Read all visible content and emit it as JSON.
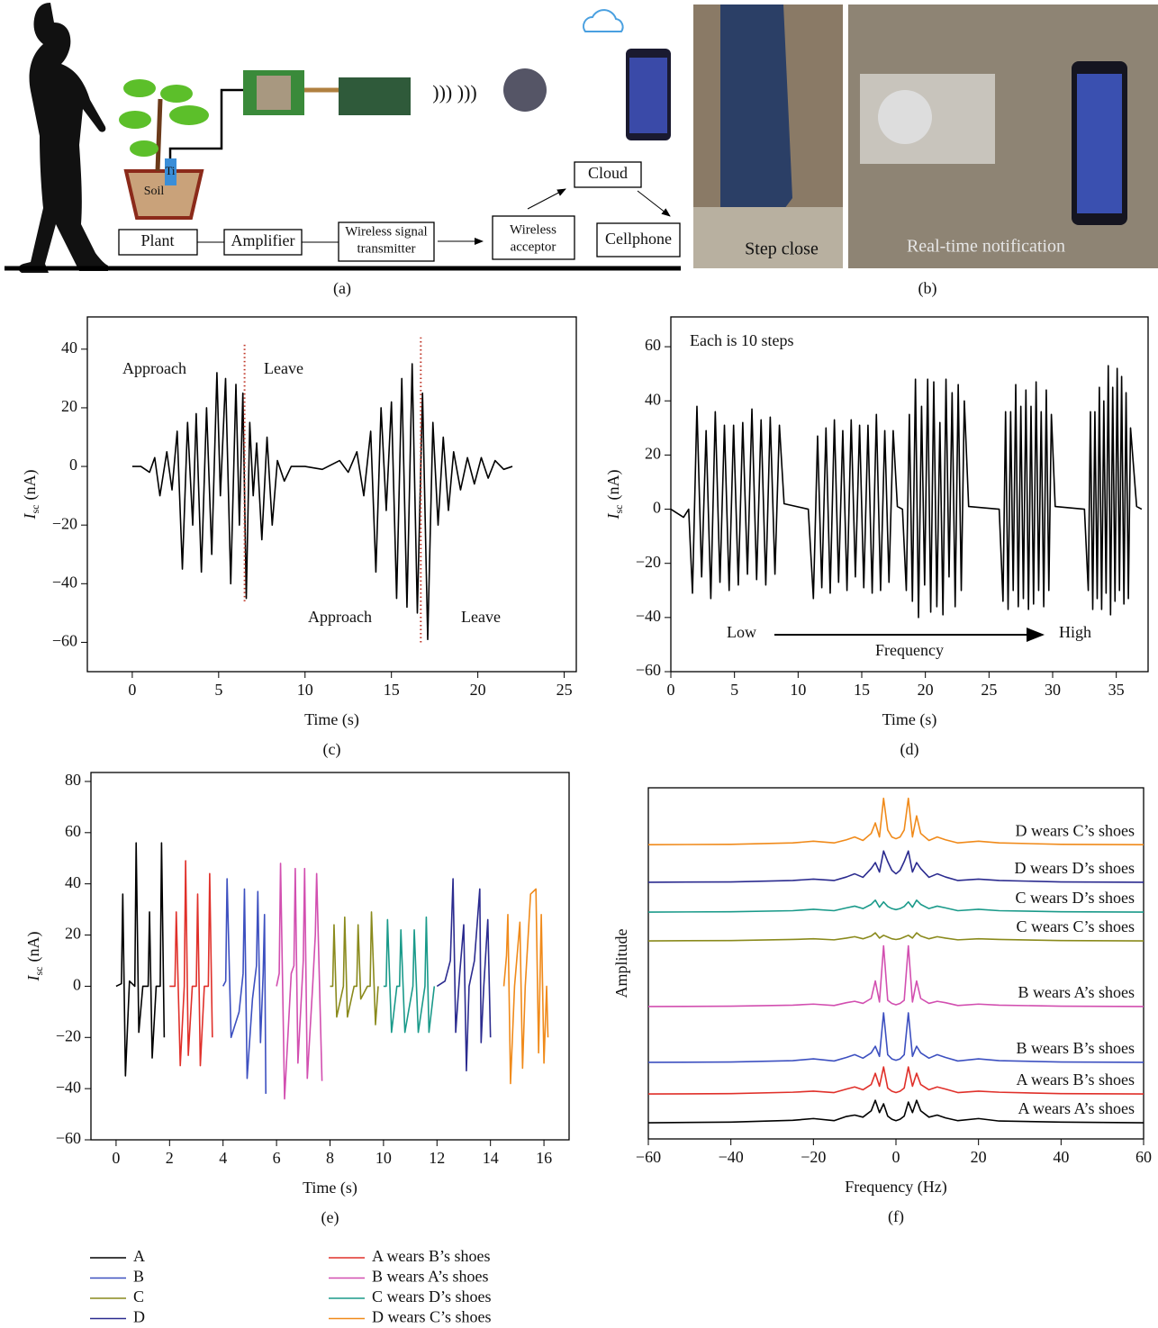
{
  "panel_a": {
    "soil": "Soil",
    "electrode": "Ti",
    "boxes": {
      "plant": "Plant",
      "amplifier": "Amplifier",
      "transmitter": [
        "Wireless signal",
        "transmitter"
      ],
      "acceptor": [
        "Wireless",
        "acceptor"
      ],
      "cloud": "Cloud",
      "cellphone": "Cellphone"
    },
    "caption": "(a)"
  },
  "panel_b": {
    "left_label": "Step close",
    "right_label": "Real-time notification",
    "caption": "(b)"
  },
  "chart_data": [
    {
      "type": "line",
      "caption": "(c)",
      "xlabel": "Time (s)",
      "ylabel": {
        "symbol": "I",
        "subscript": "sc",
        "unit": "(nA)"
      },
      "annotations": [
        "Approach",
        "Leave",
        "Approach",
        "Leave"
      ],
      "xlim": [
        -2.6,
        25.7
      ],
      "ylim": [
        -70,
        51
      ],
      "xticks": [
        0,
        5,
        10,
        15,
        20,
        25
      ],
      "yticks": [
        {
          "value": -60,
          "label": "−60"
        },
        {
          "value": -40,
          "label": "−40"
        },
        {
          "value": -20,
          "label": "−20"
        },
        0,
        20,
        40
      ],
      "color": "#000000",
      "x": [
        0,
        0.5,
        1,
        1.3,
        1.6,
        2,
        2.3,
        2.6,
        2.9,
        3.2,
        3.5,
        3.7,
        4,
        4.3,
        4.6,
        4.9,
        5.1,
        5.4,
        5.7,
        6,
        6.2,
        6.4,
        6.6,
        6.8,
        7,
        7.2,
        7.5,
        7.8,
        8.1,
        8.4,
        8.8,
        9.2,
        10,
        11,
        12,
        12.5,
        13,
        13.4,
        13.8,
        14.1,
        14.4,
        14.7,
        15,
        15.3,
        15.6,
        15.9,
        16.2,
        16.5,
        16.8,
        17.1,
        17.4,
        17.7,
        18,
        18.3,
        18.6,
        19,
        19.4,
        19.8,
        20.2,
        20.6,
        21,
        21.5,
        22
      ],
      "values": [
        0,
        0,
        -2,
        3,
        -10,
        5,
        -8,
        12,
        -35,
        15,
        -20,
        18,
        -36,
        20,
        -30,
        32,
        -10,
        30,
        -40,
        28,
        -20,
        25,
        -45,
        15,
        -10,
        8,
        -25,
        10,
        -20,
        2,
        -5,
        0,
        0,
        -1,
        2,
        -2,
        5,
        -10,
        12,
        -36,
        20,
        -15,
        22,
        -45,
        30,
        -48,
        35,
        -50,
        25,
        -59,
        15,
        -20,
        10,
        -15,
        5,
        -8,
        3,
        -6,
        3,
        -4,
        2,
        -1,
        0
      ],
      "reference_lines": {
        "color": "#c0392b",
        "lines": [
          {
            "x": 6.5,
            "y": [
              -46,
              42
            ]
          },
          {
            "x": 16.7,
            "y": [
              -60,
              44
            ]
          }
        ]
      }
    },
    {
      "type": "line",
      "caption": "(d)",
      "xlabel": "Time (s)",
      "ylabel": {
        "symbol": "I",
        "subscript": "sc",
        "unit": "(nA)"
      },
      "annotations": {
        "note": "Each is 10 steps",
        "low": "Low",
        "axis": "Frequency",
        "high": "High"
      },
      "xlim": [
        0,
        37.5
      ],
      "ylim": [
        -60,
        71
      ],
      "xticks": [
        0,
        5,
        10,
        15,
        20,
        25,
        30,
        35
      ],
      "yticks": [
        {
          "value": -60,
          "label": "−60"
        },
        {
          "value": -40,
          "label": "−40"
        },
        {
          "value": -20,
          "label": "−20"
        },
        0,
        20,
        40,
        60
      ],
      "color": "#000000",
      "x": [
        0,
        1,
        1.4,
        1.7,
        2.05,
        2.42,
        2.77,
        3.14,
        3.49,
        3.86,
        4.21,
        4.58,
        4.93,
        5.3,
        5.65,
        6.02,
        6.37,
        6.74,
        7.09,
        7.46,
        7.81,
        8.18,
        8.53,
        8.9,
        10.8,
        11.2,
        11.53,
        11.86,
        12.19,
        12.52,
        12.85,
        13.18,
        13.51,
        13.84,
        14.17,
        14.5,
        14.83,
        15.16,
        15.49,
        15.82,
        16.15,
        16.48,
        16.81,
        17.14,
        17.47,
        17.8,
        18.2,
        18.5,
        18.74,
        18.98,
        19.22,
        19.46,
        19.7,
        19.94,
        20.18,
        20.42,
        20.66,
        20.9,
        21.14,
        21.38,
        21.62,
        21.86,
        22.1,
        22.34,
        22.58,
        22.82,
        23.06,
        23.4,
        25.8,
        26.1,
        26.3,
        26.5,
        26.7,
        26.9,
        27.1,
        27.3,
        27.5,
        27.7,
        27.9,
        28.1,
        28.3,
        28.5,
        28.7,
        28.9,
        29.1,
        29.3,
        29.5,
        29.7,
        29.9,
        30.2,
        32.5,
        32.8,
        32.97,
        33.15,
        33.32,
        33.5,
        33.67,
        33.85,
        34.02,
        34.2,
        34.37,
        34.55,
        34.72,
        34.9,
        35.07,
        35.25,
        35.42,
        35.6,
        35.77,
        35.95,
        36.12,
        36.6,
        37
      ],
      "values": [
        0,
        -3,
        0,
        -31,
        38,
        -25,
        29,
        -33,
        36,
        -27,
        31,
        -30,
        31,
        -28,
        32,
        -24,
        37,
        -26,
        33,
        -28,
        34,
        -24,
        31,
        2,
        0,
        -33,
        27,
        -29,
        30,
        -31,
        33,
        -27,
        29,
        -30,
        33,
        -25,
        31,
        -29,
        31,
        -31,
        35,
        -30,
        29,
        -27,
        29,
        1,
        0,
        -30,
        35,
        -34,
        48,
        -40,
        38,
        -28,
        48,
        -38,
        47,
        -36,
        32,
        -39,
        48,
        -25,
        43,
        -36,
        46,
        -30,
        40,
        1,
        0,
        -34,
        36,
        -37,
        36,
        -30,
        46,
        -36,
        38,
        -33,
        44,
        -37,
        38,
        -35,
        47,
        -30,
        36,
        -36,
        44,
        -30,
        35,
        1,
        0,
        -30,
        36,
        -37,
        36,
        -33,
        45,
        -37,
        40,
        -31,
        53,
        -39,
        45,
        -34,
        52,
        -30,
        49,
        -35,
        43,
        -33,
        30,
        1,
        0
      ]
    },
    {
      "type": "line",
      "caption": "(e)",
      "xlabel": "Time (s)",
      "ylabel": {
        "symbol": "I",
        "subscript": "sc",
        "unit": "(nA)"
      },
      "xlim": [
        -0.94,
        16.94
      ],
      "ylim": [
        -60,
        83.5
      ],
      "xticks": [
        0,
        2,
        4,
        6,
        8,
        10,
        12,
        14,
        16
      ],
      "yticks": [
        {
          "value": -60,
          "label": "−60"
        },
        {
          "value": -40,
          "label": "−40"
        },
        {
          "value": -20,
          "label": "−20"
        },
        0,
        20,
        40,
        60,
        80
      ],
      "legend": "below",
      "legend_columns": 2,
      "series": [
        {
          "name": "A",
          "color": "#000000",
          "x": [
            0,
            0.2,
            0.25,
            0.35,
            0.5,
            0.7,
            0.75,
            0.85,
            1.0,
            1.2,
            1.25,
            1.35,
            1.5,
            1.65,
            1.7,
            1.8
          ],
          "values": [
            0,
            1,
            36,
            -35,
            2,
            0,
            56,
            -18,
            0,
            0,
            29,
            -28,
            0,
            0,
            56,
            -20
          ]
        },
        {
          "name": "B",
          "color": "#3d50c0",
          "x": [
            4.0,
            4.1,
            4.15,
            4.3,
            4.6,
            4.75,
            4.8,
            4.9,
            5.1,
            5.25,
            5.3,
            5.4,
            5.5,
            5.55,
            5.6
          ],
          "values": [
            0,
            2,
            42,
            -20,
            -10,
            5,
            38,
            -36,
            -5,
            8,
            37,
            -22,
            5,
            28,
            -42
          ]
        },
        {
          "name": "C",
          "color": "#8a8a1c",
          "x": [
            8.0,
            8.1,
            8.15,
            8.25,
            8.5,
            8.55,
            8.65,
            8.9,
            9.0,
            9.05,
            9.15,
            9.4,
            9.5,
            9.55,
            9.7,
            9.8
          ],
          "values": [
            0,
            0,
            24,
            -12,
            0,
            27,
            -12,
            0,
            0,
            24,
            -5,
            0,
            0,
            29,
            -15,
            0
          ]
        },
        {
          "name": "D",
          "color": "#2b2b8f",
          "x": [
            12.0,
            12.3,
            12.5,
            12.6,
            12.7,
            12.85,
            13.0,
            13.1,
            13.2,
            13.4,
            13.6,
            13.65,
            13.75,
            13.9,
            14.0
          ],
          "values": [
            0,
            2,
            10,
            42,
            -18,
            5,
            24,
            -33,
            0,
            10,
            38,
            -22,
            0,
            26,
            -20
          ]
        },
        {
          "name": "A wears B’s shoes",
          "color": "#e0302a",
          "x": [
            2.0,
            2.2,
            2.25,
            2.4,
            2.55,
            2.6,
            2.7,
            2.85,
            3.0,
            3.05,
            3.15,
            3.3,
            3.45,
            3.5,
            3.6
          ],
          "values": [
            0,
            0,
            29,
            -31,
            0,
            49,
            -27,
            0,
            0,
            36,
            -31,
            0,
            0,
            44,
            -20
          ]
        },
        {
          "name": "B wears A’s shoes",
          "color": "#d24fb0",
          "x": [
            6.0,
            6.1,
            6.15,
            6.3,
            6.55,
            6.65,
            6.7,
            6.8,
            7.0,
            7.05,
            7.15,
            7.35,
            7.45,
            7.5,
            7.7
          ],
          "values": [
            0,
            5,
            48,
            -44,
            5,
            8,
            46,
            -30,
            10,
            46,
            -36,
            0,
            20,
            44,
            -37
          ]
        },
        {
          "name": "C wears D’s shoes",
          "color": "#1a9a8a",
          "x": [
            10.0,
            10.1,
            10.15,
            10.3,
            10.5,
            10.6,
            10.65,
            10.8,
            11.1,
            11.15,
            11.3,
            11.55,
            11.6,
            11.7,
            11.9
          ],
          "values": [
            0,
            0,
            26,
            -18,
            0,
            0,
            22,
            -18,
            0,
            22,
            -18,
            0,
            27,
            -18,
            0
          ]
        },
        {
          "name": "D wears C’s shoes",
          "color": "#f08a1a",
          "x": [
            14.5,
            14.6,
            14.65,
            14.75,
            14.9,
            15.1,
            15.2,
            15.3,
            15.5,
            15.7,
            15.8,
            15.9,
            16.0,
            16.1,
            16.15
          ],
          "values": [
            0,
            12,
            28,
            -38,
            0,
            25,
            -32,
            0,
            36,
            38,
            -26,
            28,
            -30,
            0,
            -20
          ]
        }
      ]
    },
    {
      "type": "line",
      "caption": "(f)",
      "xlabel": "Frequency (Hz)",
      "ylabel_text": "Amplitude",
      "xlim": [
        -60,
        60
      ],
      "ylim": [
        0,
        100
      ],
      "xticks": [
        {
          "value": -60,
          "label": "−60"
        },
        {
          "value": -40,
          "label": "−40"
        },
        {
          "value": -20,
          "label": "−20"
        },
        0,
        20,
        40,
        60
      ],
      "inline_labels": true,
      "x": [
        -60,
        -40,
        -25,
        -20,
        -15,
        -12,
        -10,
        -8,
        -6,
        -5,
        -4,
        -3,
        -2,
        -1,
        0,
        1,
        2,
        3,
        4,
        5,
        6,
        8,
        10,
        12,
        15,
        20,
        25,
        40,
        60
      ],
      "series": [
        {
          "name": "A wears A’s shoes",
          "color": "#000000",
          "values": [
            4.6,
            4.8,
            5.3,
            5.8,
            5.2,
            6.4,
            6.8,
            6.2,
            8.0,
            11.0,
            7.5,
            10.0,
            6.5,
            5.6,
            5.2,
            5.6,
            6.5,
            10.5,
            7.5,
            11.0,
            8.0,
            6.2,
            6.8,
            6.0,
            5.2,
            5.8,
            5.1,
            4.8,
            4.6
          ]
        },
        {
          "name": "A wears B’s shoes",
          "color": "#e0302a",
          "values": [
            12.8,
            12.9,
            13.3,
            13.6,
            13.2,
            14.2,
            14.8,
            14.0,
            15.5,
            18.7,
            15.0,
            20.5,
            14.5,
            13.6,
            13.2,
            13.6,
            14.5,
            20.5,
            15.0,
            18.7,
            15.5,
            14.0,
            14.8,
            14.2,
            13.2,
            13.6,
            13.3,
            12.9,
            12.8
          ]
        },
        {
          "name": "B wears B’s shoes",
          "color": "#3d50c0",
          "values": [
            21.8,
            21.9,
            22.3,
            22.8,
            22.2,
            23.2,
            24.0,
            23.0,
            24.5,
            26.4,
            23.5,
            35.9,
            24.0,
            22.8,
            22.4,
            22.8,
            24.0,
            35.9,
            23.5,
            26.4,
            24.5,
            23.0,
            24.0,
            23.2,
            22.2,
            22.8,
            22.3,
            21.9,
            21.8
          ]
        },
        {
          "name": "B wears A’s shoes",
          "color": "#d24fb0",
          "values": [
            37.7,
            37.8,
            38.1,
            38.4,
            38.0,
            38.8,
            39.2,
            38.6,
            40.0,
            45.0,
            39.0,
            55.0,
            39.5,
            38.6,
            38.2,
            38.6,
            39.5,
            55.0,
            39.0,
            45.0,
            40.0,
            38.6,
            39.2,
            38.8,
            38.0,
            38.4,
            38.1,
            37.8,
            37.7
          ]
        },
        {
          "name": "C wears C’s shoes",
          "color": "#8a8a1c",
          "values": [
            56.4,
            56.5,
            56.8,
            57.0,
            56.7,
            57.2,
            57.6,
            57.0,
            57.8,
            58.7,
            57.2,
            58.0,
            57.5,
            57.0,
            56.8,
            57.0,
            57.5,
            58.0,
            57.2,
            58.7,
            57.8,
            57.0,
            57.6,
            57.2,
            56.7,
            57.0,
            56.8,
            56.5,
            56.4
          ]
        },
        {
          "name": "C wears D’s shoes",
          "color": "#1a9a8a",
          "values": [
            64.6,
            64.7,
            65.0,
            65.4,
            65.0,
            65.8,
            66.3,
            65.6,
            66.8,
            68.0,
            66.0,
            67.5,
            66.2,
            65.6,
            65.3,
            65.6,
            66.2,
            67.5,
            66.0,
            68.0,
            66.8,
            65.6,
            66.3,
            65.8,
            65.0,
            65.4,
            65.0,
            64.7,
            64.6
          ]
        },
        {
          "name": "D wears D’s shoes",
          "color": "#2b2b8f",
          "values": [
            73.1,
            73.2,
            73.6,
            74.0,
            73.6,
            74.6,
            75.5,
            74.5,
            77.0,
            78.7,
            76.0,
            82.0,
            79.0,
            76.5,
            75.5,
            76.5,
            79.0,
            82.0,
            76.0,
            78.7,
            77.0,
            74.5,
            75.5,
            74.6,
            73.6,
            74.0,
            73.6,
            73.2,
            73.1
          ]
        },
        {
          "name": "D wears C’s shoes",
          "color": "#f08a1a",
          "values": [
            83.8,
            83.9,
            84.3,
            84.8,
            84.3,
            85.2,
            86.0,
            85.0,
            87.0,
            90.0,
            86.0,
            97.0,
            88.0,
            86.0,
            85.5,
            86.0,
            88.0,
            97.0,
            86.0,
            92.0,
            87.0,
            85.0,
            86.0,
            85.2,
            84.3,
            84.8,
            84.3,
            83.9,
            83.8
          ]
        }
      ]
    }
  ]
}
